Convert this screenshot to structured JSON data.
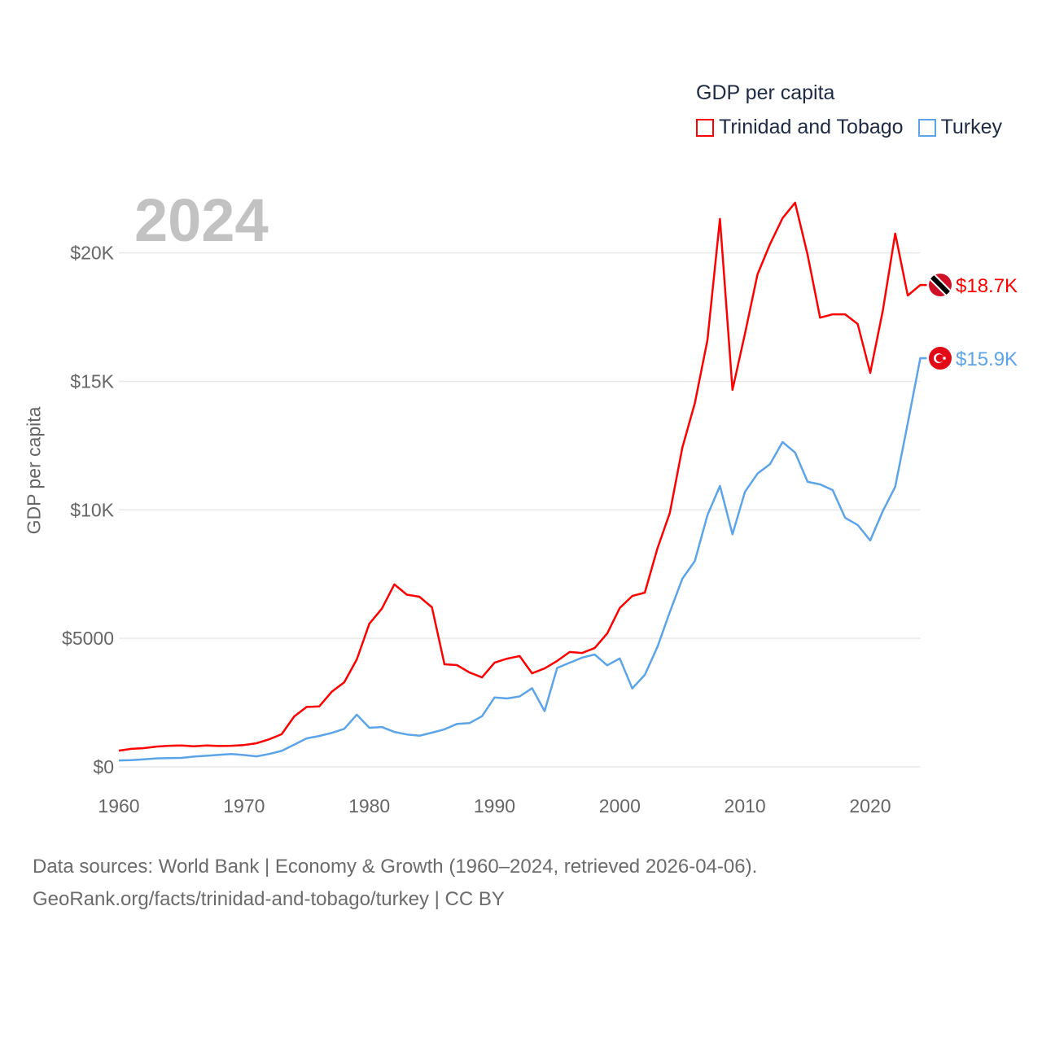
{
  "chart_data": {
    "type": "line",
    "title": "GDP per capita",
    "highlight_year": "2024",
    "xlabel": "",
    "ylabel": "GDP per capita",
    "xlim": [
      1960,
      2024
    ],
    "ylim": [
      0,
      22000
    ],
    "grid": true,
    "legend_position": "top-right",
    "x_ticks": [
      1960,
      1970,
      1980,
      1990,
      2000,
      2010,
      2020
    ],
    "x_tick_labels": [
      "1960",
      "1970",
      "1980",
      "1990",
      "2000",
      "2010",
      "2020"
    ],
    "y_ticks": [
      0,
      5000,
      10000,
      15000,
      20000
    ],
    "y_tick_labels": [
      "$0",
      "$5000",
      "$10K",
      "$15K",
      "$20K"
    ],
    "x": [
      1960,
      1961,
      1962,
      1963,
      1964,
      1965,
      1966,
      1967,
      1968,
      1969,
      1970,
      1971,
      1972,
      1973,
      1974,
      1975,
      1976,
      1977,
      1978,
      1979,
      1980,
      1981,
      1982,
      1983,
      1984,
      1985,
      1986,
      1987,
      1988,
      1989,
      1990,
      1991,
      1992,
      1993,
      1994,
      1995,
      1996,
      1997,
      1998,
      1999,
      2000,
      2001,
      2002,
      2003,
      2004,
      2005,
      2006,
      2007,
      2008,
      2009,
      2010,
      2011,
      2012,
      2013,
      2014,
      2015,
      2016,
      2017,
      2018,
      2019,
      2020,
      2021,
      2022,
      2023,
      2024
    ],
    "series": [
      {
        "name": "Trinidad and Tobago",
        "color": "#ff0000",
        "end_label": "$18.7K",
        "flag": "trinidad-and-tobago",
        "values": [
          630,
          700,
          730,
          790,
          820,
          830,
          800,
          830,
          810,
          820,
          850,
          920,
          1070,
          1270,
          1960,
          2330,
          2350,
          2920,
          3290,
          4180,
          5570,
          6150,
          7100,
          6700,
          6620,
          6210,
          3990,
          3960,
          3670,
          3480,
          4050,
          4210,
          4310,
          3640,
          3830,
          4120,
          4470,
          4430,
          4620,
          5190,
          6180,
          6650,
          6780,
          8490,
          9880,
          12420,
          14160,
          16600,
          21320,
          14670,
          16850,
          19160,
          20340,
          21350,
          21950,
          19920,
          17480,
          17610,
          17610,
          17230,
          15330,
          17740,
          20750,
          18340,
          18750
        ]
      },
      {
        "name": "Turkey",
        "color": "#5ba4ea",
        "end_label": "$15.9K",
        "flag": "turkey",
        "values": [
          250,
          260,
          290,
          330,
          340,
          350,
          400,
          430,
          470,
          500,
          460,
          410,
          500,
          620,
          860,
          1110,
          1200,
          1320,
          1480,
          2030,
          1520,
          1550,
          1360,
          1260,
          1210,
          1330,
          1460,
          1670,
          1700,
          1970,
          2700,
          2660,
          2740,
          3060,
          2170,
          3850,
          4050,
          4250,
          4370,
          3950,
          4220,
          3050,
          3580,
          4660,
          6020,
          7320,
          8010,
          9790,
          10930,
          9050,
          10700,
          11410,
          11780,
          12640,
          12230,
          11090,
          10990,
          10770,
          9690,
          9410,
          8810,
          9950,
          10900,
          13370,
          15900
        ]
      }
    ]
  },
  "footer": {
    "line1": "Data sources: World Bank | Economy & Growth (1960–2024, retrieved 2026-04-06).",
    "line2": "GeoRank.org/facts/trinidad-and-tobago/turkey | CC BY"
  }
}
